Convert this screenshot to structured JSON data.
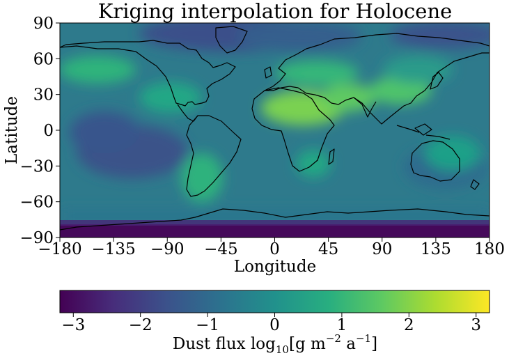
{
  "map": {
    "title": "Kriging interpolation for Holocene",
    "xlabel": "Longitude",
    "ylabel": "Latitude",
    "x_ticks": [
      "−180",
      "−135",
      "−90",
      "−45",
      "0",
      "45",
      "90",
      "135",
      "180"
    ],
    "y_ticks": [
      "90",
      "60",
      "30",
      "0",
      "−30",
      "−60",
      "−90"
    ],
    "lon_range": [
      -180,
      180
    ],
    "lat_range": [
      -90,
      90
    ],
    "projection": "PlateCarree",
    "coastlines": true,
    "grid": false
  },
  "colorbar": {
    "ticks": [
      "−3",
      "−2",
      "−1",
      "0",
      "1",
      "2",
      "3"
    ],
    "tick_values": [
      -3,
      -2,
      -1,
      0,
      1,
      2,
      3
    ],
    "range": [
      -3.2,
      3.2
    ],
    "colormap": "viridis",
    "label_main": "Dust flux log",
    "label_sub": "10",
    "label_open": "[g m",
    "label_sup": "−2",
    "label_mid": " a",
    "label_sup2": "−1",
    "label_close": "]"
  }
}
